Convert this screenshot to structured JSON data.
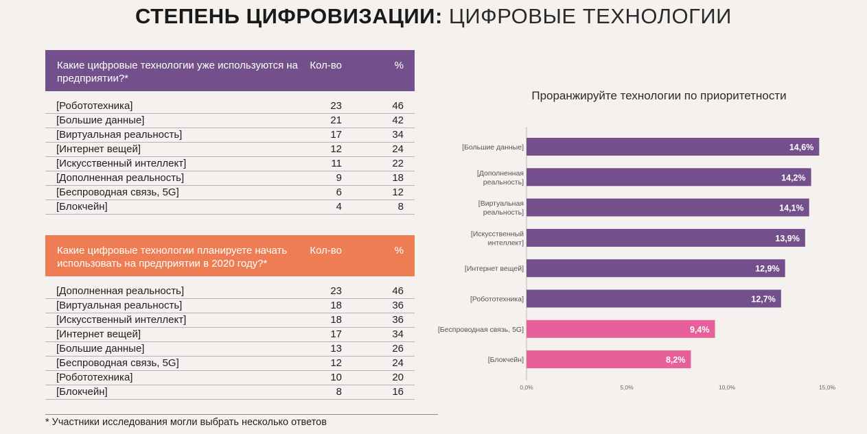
{
  "page": {
    "title_bold": "СТЕПЕНЬ ЦИФРОВИЗАЦИИ:",
    "title_light": "ЦИФРОВЫЕ ТЕХНОЛОГИИ"
  },
  "table1": {
    "question": "Какие цифровые технологии уже используются на предприятии?*",
    "col_count": "Кол-во",
    "col_pct": "%",
    "rows": [
      {
        "name": "[Робототехника]",
        "count": "23",
        "pct": "46"
      },
      {
        "name": "[Большие данные]",
        "count": "21",
        "pct": "42"
      },
      {
        "name": "[Виртуальная реальность]",
        "count": "17",
        "pct": "34"
      },
      {
        "name": "[Интернет вещей]",
        "count": "12",
        "pct": "24"
      },
      {
        "name": "[Искусственный интеллект]",
        "count": "11",
        "pct": "22"
      },
      {
        "name": "[Дополненная реальность]",
        "count": "9",
        "pct": "18"
      },
      {
        "name": "[Беспроводная связь, 5G]",
        "count": "6",
        "pct": "12"
      },
      {
        "name": "[Блокчейн]",
        "count": "4",
        "pct": "8"
      }
    ]
  },
  "table2": {
    "question": "Какие цифровые технологии планируете начать использовать на предприятии в 2020 году?*",
    "col_count": "Кол-во",
    "col_pct": "%",
    "rows": [
      {
        "name": "[Дополненная реальность]",
        "count": "23",
        "pct": "46"
      },
      {
        "name": "[Виртуальная реальность]",
        "count": "18",
        "pct": "36"
      },
      {
        "name": "[Искусственный интеллект]",
        "count": "18",
        "pct": "36"
      },
      {
        "name": "[Интернет вещей]",
        "count": "17",
        "pct": "34"
      },
      {
        "name": "[Большие данные]",
        "count": "13",
        "pct": "26"
      },
      {
        "name": "[Беспроводная связь, 5G]",
        "count": "12",
        "pct": "24"
      },
      {
        "name": "[Робототехника]",
        "count": "10",
        "pct": "20"
      },
      {
        "name": "[Блокчейн]",
        "count": "8",
        "pct": "16"
      }
    ]
  },
  "footnote": "* Участники исследования могли выбрать несколько ответов",
  "colors": {
    "purple": "#73508c",
    "orange": "#ef7d53",
    "pink": "#e8609a"
  },
  "chart_data": {
    "type": "bar",
    "orientation": "horizontal",
    "title": "Проранжируйте технологии по приоритетности",
    "categories": [
      [
        "[Большие данные]"
      ],
      [
        "[Дополненная",
        "реальность]"
      ],
      [
        "[Виртуальная",
        "реальность]"
      ],
      [
        "[Искусственный",
        "интеллект]"
      ],
      [
        "[Интернет вещей]"
      ],
      [
        "[Робототехника]"
      ],
      [
        "[Беспроводная связь, 5G]"
      ],
      [
        "[Блокчейн]"
      ]
    ],
    "values": [
      14.6,
      14.2,
      14.1,
      13.9,
      12.9,
      12.7,
      9.4,
      8.2
    ],
    "value_labels": [
      "14,6%",
      "14,2%",
      "14,1%",
      "13,9%",
      "12,9%",
      "12,7%",
      "9,4%",
      "8,2%"
    ],
    "bar_colors": [
      "#73508c",
      "#73508c",
      "#73508c",
      "#73508c",
      "#73508c",
      "#73508c",
      "#e8609a",
      "#e8609a"
    ],
    "xlim": [
      0,
      15
    ],
    "xticks": [
      0,
      5,
      10,
      15
    ],
    "xtick_labels": [
      "0,0%",
      "5,0%",
      "10,0%",
      "15,0%"
    ],
    "grid": false
  }
}
